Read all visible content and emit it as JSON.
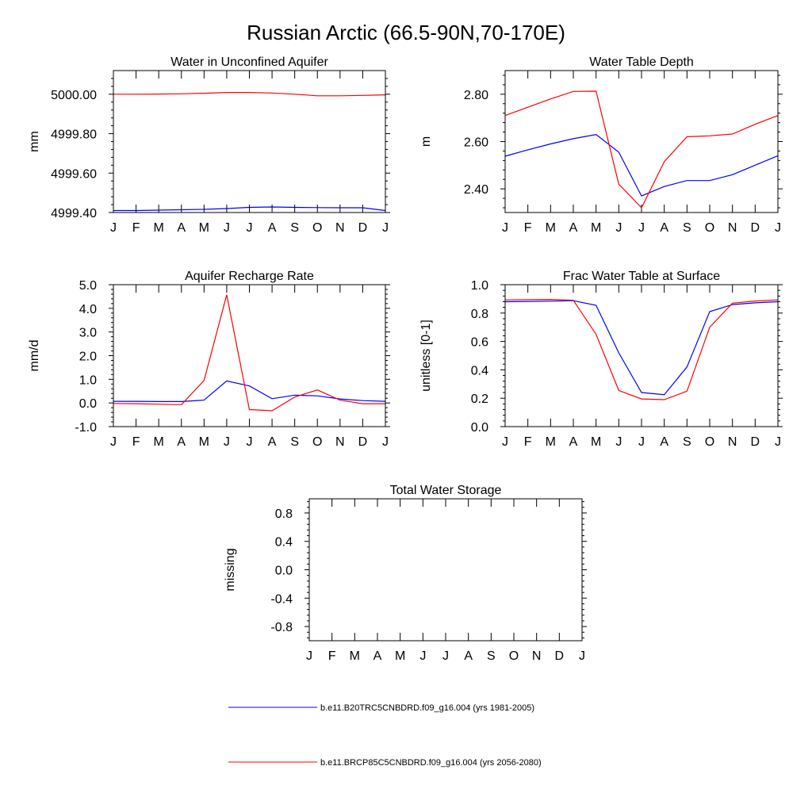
{
  "figure": {
    "title": "Russian Arctic (66.5-90N,70-170E)"
  },
  "legend": [
    {
      "label": "b.e11.B20TRC5CNBDRD.f09_g16.004 (yrs 1981-2005)",
      "color": "#0000ff"
    },
    {
      "label": "b.e11.BRCP85C5CNBDRD.f09_g16.004 (yrs 2056-2080)",
      "color": "#ff0000"
    }
  ],
  "chart_data": [
    {
      "type": "line",
      "title": "Water in Unconfined Aquifer",
      "xlabel": "",
      "ylabel": "mm",
      "categories": [
        "J",
        "F",
        "M",
        "A",
        "M",
        "J",
        "J",
        "A",
        "S",
        "O",
        "N",
        "D",
        "J"
      ],
      "ylim": [
        4999.4,
        5000.12
      ],
      "yticks": [
        4999.4,
        4999.6,
        4999.8,
        5000.0
      ],
      "ytick_labels": [
        "4999.40",
        "4999.60",
        "4999.80",
        "5000.00"
      ],
      "series": [
        {
          "name": "b.e11.B20TRC5CNBDRD.f09_g16.004 (yrs 1981-2005)",
          "color": "#0000ff",
          "values": [
            4999.41,
            4999.41,
            4999.412,
            4999.414,
            4999.416,
            4999.42,
            4999.426,
            4999.428,
            4999.426,
            4999.425,
            4999.424,
            4999.424,
            4999.41
          ]
        },
        {
          "name": "b.e11.BRCP85C5CNBDRD.f09_g16.004 (yrs 2056-2080)",
          "color": "#ff0000",
          "values": [
            5000.0,
            5000.0,
            5000.001,
            5000.002,
            5000.005,
            5000.009,
            5000.009,
            5000.006,
            5000.0,
            4999.992,
            4999.992,
            4999.994,
            4999.997
          ]
        }
      ]
    },
    {
      "type": "line",
      "title": "Water Table Depth",
      "xlabel": "",
      "ylabel": "m",
      "categories": [
        "J",
        "F",
        "M",
        "A",
        "M",
        "J",
        "J",
        "A",
        "S",
        "O",
        "N",
        "D",
        "J"
      ],
      "ylim": [
        2.3,
        2.9
      ],
      "yticks": [
        2.4,
        2.6,
        2.8
      ],
      "ytick_labels": [
        "2.40",
        "2.60",
        "2.80"
      ],
      "series": [
        {
          "name": "b.e11.B20TRC5CNBDRD.f09_g16.004 (yrs 1981-2005)",
          "color": "#0000ff",
          "values": [
            2.538,
            2.565,
            2.59,
            2.612,
            2.63,
            2.555,
            2.37,
            2.41,
            2.435,
            2.435,
            2.46,
            2.5,
            2.54
          ]
        },
        {
          "name": "b.e11.BRCP85C5CNBDRD.f09_g16.004 (yrs 2056-2080)",
          "color": "#ff0000",
          "values": [
            2.71,
            2.745,
            2.78,
            2.812,
            2.813,
            2.42,
            2.32,
            2.515,
            2.62,
            2.624,
            2.632,
            2.673,
            2.71
          ]
        }
      ]
    },
    {
      "type": "line",
      "title": "Aquifer Recharge Rate",
      "xlabel": "",
      "ylabel": "mm/d",
      "categories": [
        "J",
        "F",
        "M",
        "A",
        "M",
        "J",
        "J",
        "A",
        "S",
        "O",
        "N",
        "D",
        "J"
      ],
      "ylim": [
        -1.0,
        5.0
      ],
      "yticks": [
        -1.0,
        0.0,
        1.0,
        2.0,
        3.0,
        4.0,
        5.0
      ],
      "ytick_labels": [
        "-1.0",
        "0.0",
        "1.0",
        "2.0",
        "3.0",
        "4.0",
        "5.0"
      ],
      "series": [
        {
          "name": "b.e11.B20TRC5CNBDRD.f09_g16.004 (yrs 1981-2005)",
          "color": "#0000ff",
          "values": [
            0.07,
            0.07,
            0.06,
            0.06,
            0.12,
            0.93,
            0.72,
            0.18,
            0.33,
            0.3,
            0.17,
            0.1,
            0.07
          ]
        },
        {
          "name": "b.e11.BRCP85C5CNBDRD.f09_g16.004 (yrs 2056-2080)",
          "color": "#ff0000",
          "values": [
            -0.02,
            -0.03,
            -0.05,
            -0.07,
            0.95,
            4.57,
            -0.28,
            -0.33,
            0.25,
            0.55,
            0.12,
            -0.03,
            -0.03
          ]
        }
      ]
    },
    {
      "type": "line",
      "title": "Frac Water Table at Surface",
      "xlabel": "",
      "ylabel": "unitless [0-1]",
      "categories": [
        "J",
        "F",
        "M",
        "A",
        "M",
        "J",
        "J",
        "A",
        "S",
        "O",
        "N",
        "D",
        "J"
      ],
      "ylim": [
        0.0,
        1.0
      ],
      "yticks": [
        0.0,
        0.2,
        0.4,
        0.6,
        0.8,
        1.0
      ],
      "ytick_labels": [
        "0.0",
        "0.2",
        "0.4",
        "0.6",
        "0.8",
        "1.0"
      ],
      "series": [
        {
          "name": "b.e11.B20TRC5CNBDRD.f09_g16.004 (yrs 1981-2005)",
          "color": "#0000ff",
          "values": [
            0.88,
            0.882,
            0.884,
            0.887,
            0.855,
            0.52,
            0.24,
            0.225,
            0.42,
            0.81,
            0.86,
            0.872,
            0.88
          ]
        },
        {
          "name": "b.e11.BRCP85C5CNBDRD.f09_g16.004 (yrs 2056-2080)",
          "color": "#ff0000",
          "values": [
            0.893,
            0.895,
            0.896,
            0.89,
            0.65,
            0.255,
            0.195,
            0.19,
            0.25,
            0.7,
            0.87,
            0.885,
            0.893
          ]
        }
      ]
    },
    {
      "type": "line",
      "title": "Total Water Storage",
      "xlabel": "",
      "ylabel": "missing",
      "categories": [
        "J",
        "F",
        "M",
        "A",
        "M",
        "J",
        "J",
        "A",
        "S",
        "O",
        "N",
        "D",
        "J"
      ],
      "ylim": [
        -1.0,
        1.0
      ],
      "yticks": [
        -0.8,
        -0.4,
        0.0,
        0.4,
        0.8
      ],
      "ytick_labels": [
        "-0.8",
        "-0.4",
        "0.0",
        "0.4",
        "0.8"
      ],
      "series": []
    }
  ]
}
